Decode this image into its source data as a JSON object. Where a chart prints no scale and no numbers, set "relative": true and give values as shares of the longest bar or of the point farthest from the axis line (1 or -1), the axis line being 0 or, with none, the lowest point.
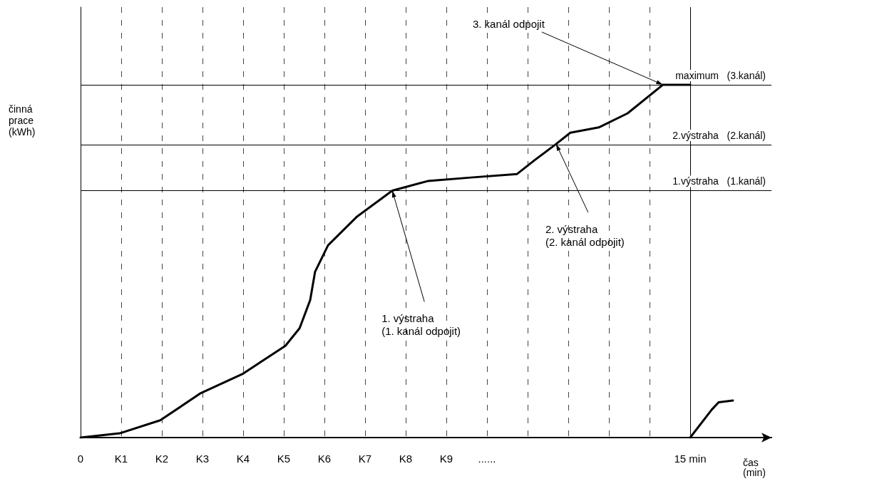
{
  "chart_data": {
    "type": "line",
    "relative": true,
    "ylabel": "činná\nprace\n(kWh)",
    "xlabel": "čas\n(min)",
    "xlim": [
      0,
      17
    ],
    "xticks": [
      {
        "value": 0,
        "label": "0"
      },
      {
        "value": 1,
        "label": "K1"
      },
      {
        "value": 2,
        "label": "K2"
      },
      {
        "value": 3,
        "label": "K3"
      },
      {
        "value": 4,
        "label": "K4"
      },
      {
        "value": 5,
        "label": "K5"
      },
      {
        "value": 6,
        "label": "K6"
      },
      {
        "value": 7,
        "label": "K7"
      },
      {
        "value": 8,
        "label": "K8"
      },
      {
        "value": 9,
        "label": "K9"
      },
      {
        "value": 10,
        "label": "......"
      },
      {
        "value": 11,
        "label": null
      },
      {
        "value": 12,
        "label": null
      },
      {
        "value": 13,
        "label": null
      },
      {
        "value": 14,
        "label": null
      },
      {
        "value": 15,
        "label": "15 min"
      }
    ],
    "grid": "x",
    "line_style": "solid",
    "series": [
      {
        "color": "#000000",
        "x": [
          0,
          0.96,
          1.96,
          2.96,
          3.98,
          5.04,
          5.39,
          5.65,
          5.77,
          6.09,
          6.79,
          7.67,
          8.54,
          9.6,
          10.74,
          11.18,
          11.7,
          12.05,
          12.75,
          13.46,
          14.33,
          15
        ],
        "values": [
          0,
          0.012,
          0.049,
          0.126,
          0.18,
          0.26,
          0.31,
          0.39,
          0.47,
          0.545,
          0.625,
          0.7,
          0.727,
          0.737,
          0.747,
          0.787,
          0.832,
          0.864,
          0.879,
          0.919,
          1,
          1
        ]
      },
      {
        "color": "#000000",
        "x": [
          15,
          15.53,
          15.7,
          16.05
        ],
        "values": [
          0,
          0.079,
          0.1,
          0.105
        ]
      }
    ],
    "ref_lines": [
      {
        "axis": "y",
        "value": 1,
        "label": "maximum   (3.kanál)",
        "color": "#000000"
      },
      {
        "axis": "y",
        "value": 0.832,
        "label": "2.výstraha   (2.kanál)",
        "color": "#000000"
      },
      {
        "axis": "y",
        "value": 0.7,
        "label": "1.výstraha   (1.kanál)",
        "color": "#000000"
      },
      {
        "axis": "x",
        "value": 15,
        "label": null,
        "color": "#000000"
      }
    ],
    "annotations": [
      {
        "text": "3. kanál odpojit",
        "x": 14.33,
        "y": 1
      },
      {
        "text": "2. výstraha\n(2. kanál odpojit)",
        "x": 11.7,
        "y": 0.832
      },
      {
        "text": "1. výstraha\n(1. kanál odpojit)",
        "x": 7.67,
        "y": 0.7
      }
    ]
  }
}
